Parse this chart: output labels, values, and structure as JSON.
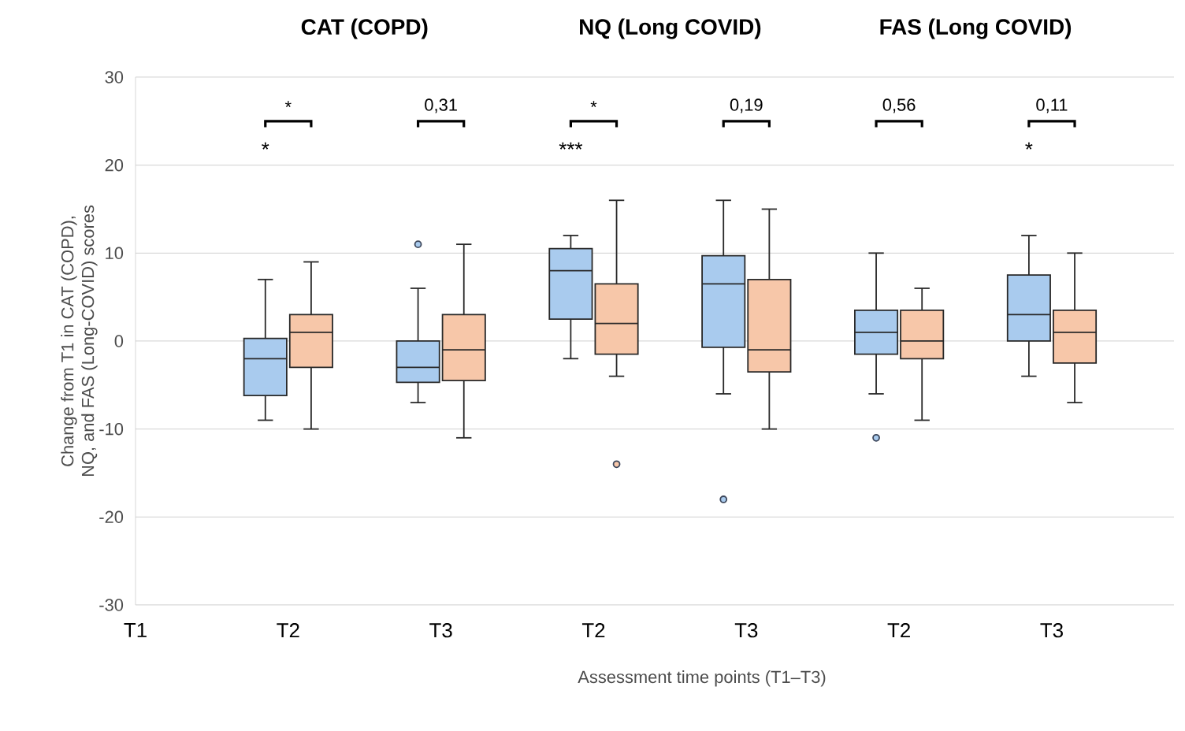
{
  "chart_data": {
    "type": "box",
    "xlabel": "Assessment time points (T1–T3)",
    "ylabel": "Change from T1 in CAT (COPD),\nNQ, and FAS (Long-COVID) scores",
    "categories": [
      "T1",
      "T2",
      "T3",
      "T2",
      "T3",
      "T2",
      "T3"
    ],
    "ylim": [
      -30,
      30
    ],
    "yticks": [
      -30,
      -20,
      -10,
      0,
      10,
      20,
      30
    ],
    "grid": "y",
    "series": [
      {
        "color": "#a9cbee",
        "boxes": [
          null,
          {
            "low": -9,
            "q1": -6.2,
            "median": -2,
            "q3": 0.3,
            "high": 7
          },
          {
            "low": -7,
            "q1": -4.7,
            "median": -3,
            "q3": 0,
            "high": 6,
            "outliers": [
              11
            ]
          },
          {
            "low": -2,
            "q1": 2.5,
            "median": 8,
            "q3": 10.5,
            "high": 12
          },
          {
            "low": -6,
            "q1": -0.7,
            "median": 6.5,
            "q3": 9.7,
            "high": 16,
            "outliers": [
              -18
            ]
          },
          {
            "low": -6,
            "q1": -1.5,
            "median": 1,
            "q3": 3.5,
            "high": 10,
            "outliers": [
              -11
            ]
          },
          {
            "low": -4,
            "q1": 0,
            "median": 3,
            "q3": 7.5,
            "high": 12
          }
        ]
      },
      {
        "color": "#f7c7a9",
        "boxes": [
          null,
          {
            "low": -10,
            "q1": -3,
            "median": 1,
            "q3": 3,
            "high": 9
          },
          {
            "low": -11,
            "q1": -4.5,
            "median": -1,
            "q3": 3,
            "high": 11
          },
          {
            "low": -4,
            "q1": -1.5,
            "median": 2,
            "q3": 6.5,
            "high": 16,
            "outliers": [
              -14
            ]
          },
          {
            "low": -10,
            "q1": -3.5,
            "median": -1,
            "q3": 7,
            "high": 15
          },
          {
            "low": -9,
            "q1": -2,
            "median": 0,
            "q3": 3.5,
            "high": 6
          },
          {
            "low": -7,
            "q1": -2.5,
            "median": 1,
            "q3": 3.5,
            "high": 10
          }
        ]
      }
    ],
    "annotations": [
      "CAT (COPD)",
      "NQ (Long COVID)",
      "FAS (Long COVID)",
      "*",
      "*",
      "0,31",
      "*",
      "***",
      "0,19",
      "0,56",
      "0,11",
      "*"
    ]
  }
}
